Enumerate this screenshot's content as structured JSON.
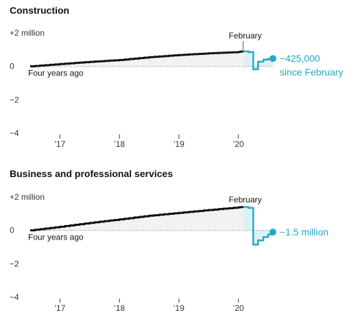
{
  "chart_data": [
    {
      "type": "line",
      "title": "Construction",
      "y_tick_labels": [
        "+2 million",
        "0",
        "−2",
        "−4"
      ],
      "y_ticks": [
        2,
        0,
        -2,
        -4
      ],
      "ylim": [
        -4,
        2
      ],
      "x_tick_labels": [
        "’17",
        "’18",
        "’19",
        "’20"
      ],
      "x_ticks": [
        2017,
        2018,
        2019,
        2020
      ],
      "baseline_label": "Four years ago",
      "february_label": "February",
      "end_label": [
        "−425,000",
        "since February"
      ],
      "series": [
        {
          "role": "before",
          "x": [
            2016.5,
            2017.0,
            2017.5,
            2018.0,
            2018.5,
            2019.0,
            2019.5,
            2020.0,
            2020.08
          ],
          "values": [
            0.0,
            0.14,
            0.27,
            0.38,
            0.55,
            0.68,
            0.78,
            0.86,
            0.9
          ]
        },
        {
          "role": "after",
          "x": [
            2020.08,
            2020.17,
            2020.25,
            2020.33,
            2020.42,
            2020.5,
            2020.58
          ],
          "values": [
            0.9,
            0.85,
            -0.18,
            0.28,
            0.4,
            0.45,
            0.47
          ]
        }
      ]
    },
    {
      "type": "line",
      "title": "Business and professional services",
      "y_tick_labels": [
        "+2 million",
        "0",
        "−2",
        "−4"
      ],
      "y_ticks": [
        2,
        0,
        -2,
        -4
      ],
      "ylim": [
        -4,
        2
      ],
      "x_tick_labels": [
        "’17",
        "’18",
        "’19",
        "’20"
      ],
      "x_ticks": [
        2017,
        2018,
        2019,
        2020
      ],
      "baseline_label": "Four years ago",
      "february_label": "February",
      "end_label": [
        "−1.5 million"
      ],
      "series": [
        {
          "role": "before",
          "x": [
            2016.5,
            2017.0,
            2017.5,
            2018.0,
            2018.5,
            2019.0,
            2019.5,
            2020.0,
            2020.08
          ],
          "values": [
            0.0,
            0.22,
            0.45,
            0.66,
            0.88,
            1.05,
            1.22,
            1.38,
            1.4
          ]
        },
        {
          "role": "after",
          "x": [
            2020.08,
            2020.17,
            2020.25,
            2020.33,
            2020.42,
            2020.5,
            2020.58
          ],
          "values": [
            1.4,
            1.35,
            -0.85,
            -0.6,
            -0.4,
            -0.25,
            -0.1
          ]
        }
      ]
    }
  ],
  "colors": {
    "before_line": "#121212",
    "after_line": "#22abc5",
    "area_before": "#f2f2f2",
    "area_after": "#ddf2f6",
    "dotted": "#999999"
  }
}
